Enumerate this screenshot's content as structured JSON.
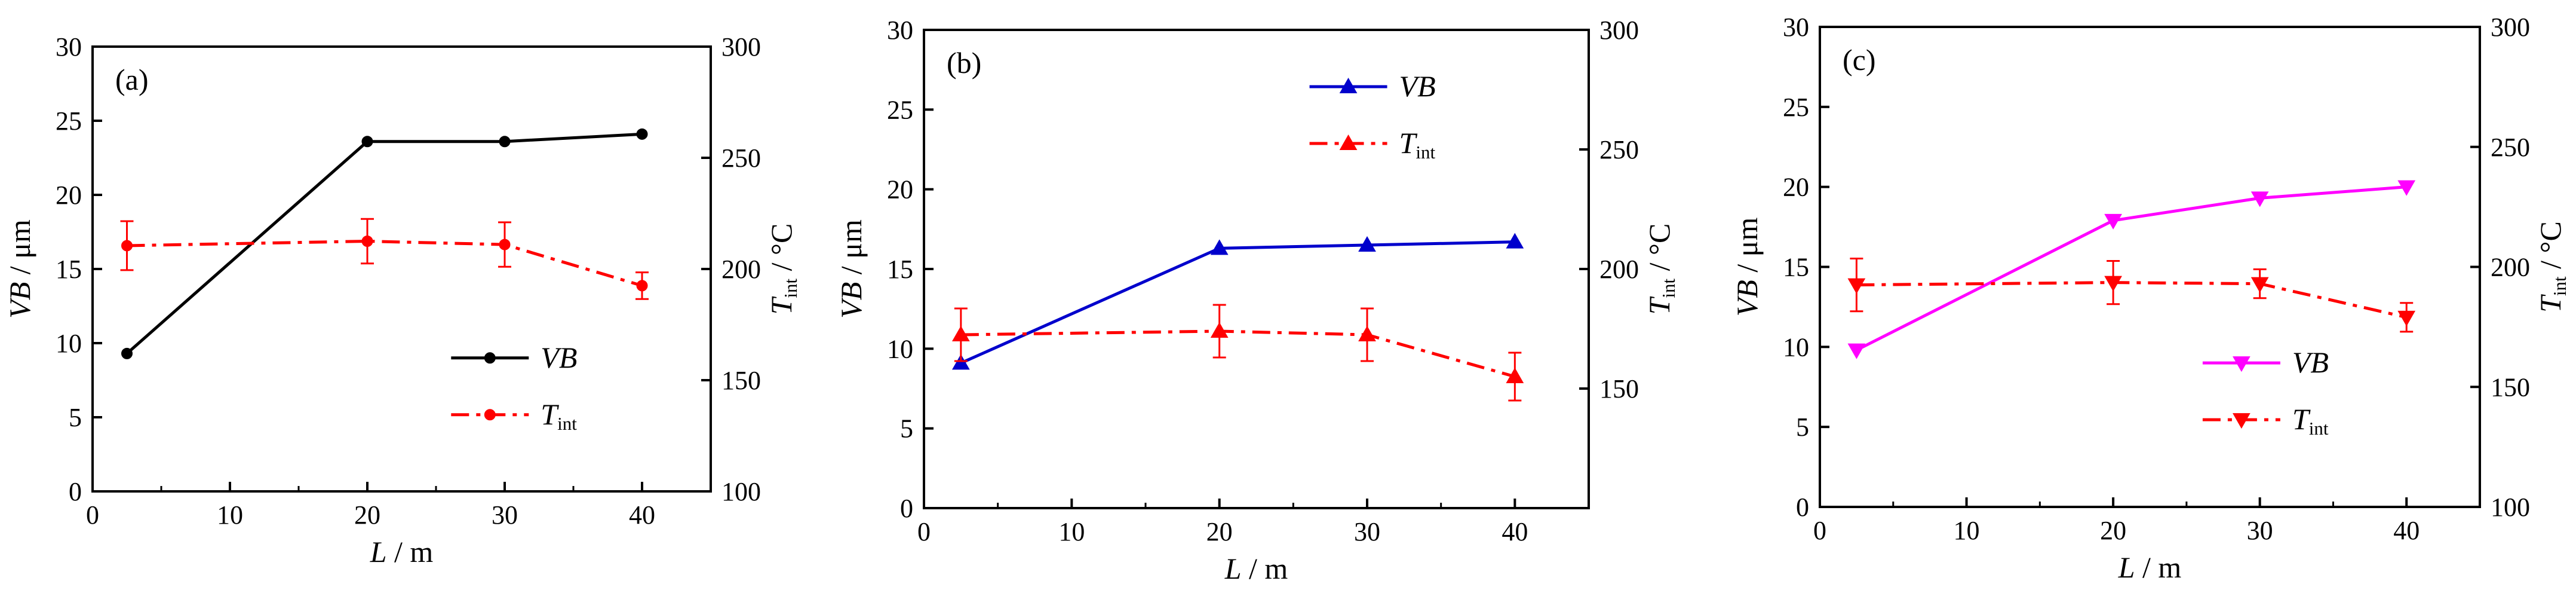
{
  "chart_data": [
    {
      "panel": "(a)",
      "type": "line",
      "xlabel": "L / m",
      "ylabel_left": "VB / μm",
      "ylabel_right": "T_int / °C",
      "xlim": [
        0,
        45
      ],
      "ylim_left": [
        0,
        30
      ],
      "ylim_right": [
        100,
        300
      ],
      "xticks": [
        0,
        10,
        20,
        30,
        40
      ],
      "yticks_left": [
        0,
        5,
        10,
        15,
        20,
        25,
        30
      ],
      "yticks_right": [
        100,
        150,
        200,
        250,
        300
      ],
      "legend_position": "bottom-right",
      "series": [
        {
          "name": "VB",
          "axis": "left",
          "color": "#000000",
          "dash": "solid",
          "marker": "circle",
          "x": [
            2.5,
            20,
            30,
            40
          ],
          "values": [
            9.3,
            23.6,
            23.6,
            24.1
          ]
        },
        {
          "name": "T_int",
          "axis": "right",
          "color": "#ff0000",
          "dash": "dashdot",
          "marker": "circle",
          "x": [
            2.5,
            20,
            30,
            40
          ],
          "values": [
            210.5,
            212.5,
            211.0,
            192.5
          ],
          "errors": [
            11,
            10,
            10,
            6
          ]
        }
      ]
    },
    {
      "panel": "(b)",
      "type": "line",
      "xlabel": "L / m",
      "ylabel_left": "VB / μm",
      "ylabel_right": "T_int / °C",
      "xlim": [
        0,
        45
      ],
      "ylim_left": [
        0,
        30
      ],
      "ylim_right": [
        100,
        300
      ],
      "xticks": [
        0,
        10,
        20,
        30,
        40
      ],
      "yticks_left": [
        0,
        5,
        10,
        15,
        20,
        25,
        30
      ],
      "yticks_right": [
        150,
        200,
        250,
        300
      ],
      "legend_position": "top-right",
      "series": [
        {
          "name": "VB",
          "axis": "left",
          "color": "#0000cc",
          "dash": "solid",
          "marker": "triangle-up",
          "x": [
            2.5,
            20,
            30,
            40
          ],
          "values": [
            9.1,
            16.3,
            16.5,
            16.7
          ]
        },
        {
          "name": "T_int",
          "axis": "right",
          "color": "#ff0000",
          "dash": "dashdot",
          "marker": "triangle-up",
          "x": [
            2.5,
            20,
            30,
            40
          ],
          "values": [
            172.5,
            174.0,
            172.5,
            155.0
          ],
          "errors": [
            11,
            11,
            11,
            10
          ]
        }
      ]
    },
    {
      "panel": "(c)",
      "type": "line",
      "xlabel": "L / m",
      "ylabel_left": "VB / μm",
      "ylabel_right": "T_int / °C",
      "xlim": [
        0,
        45
      ],
      "ylim_left": [
        0,
        30
      ],
      "ylim_right": [
        100,
        300
      ],
      "xticks": [
        0,
        10,
        20,
        30,
        40
      ],
      "yticks_left": [
        0,
        5,
        10,
        15,
        20,
        25,
        30
      ],
      "yticks_right": [
        100,
        150,
        200,
        250,
        300
      ],
      "legend_position": "bottom-right",
      "series": [
        {
          "name": "VB",
          "axis": "left",
          "color": "#ff00ff",
          "dash": "solid",
          "marker": "triangle-down",
          "x": [
            2.5,
            20,
            30,
            40
          ],
          "values": [
            9.8,
            17.9,
            19.3,
            20.0
          ]
        },
        {
          "name": "T_int",
          "axis": "right",
          "color": "#ff0000",
          "dash": "dashdot",
          "marker": "triangle-down",
          "x": [
            2.5,
            20,
            30,
            40
          ],
          "values": [
            192.5,
            193.5,
            193.0,
            179.0
          ],
          "errors": [
            11,
            9,
            6,
            6
          ]
        }
      ]
    }
  ]
}
